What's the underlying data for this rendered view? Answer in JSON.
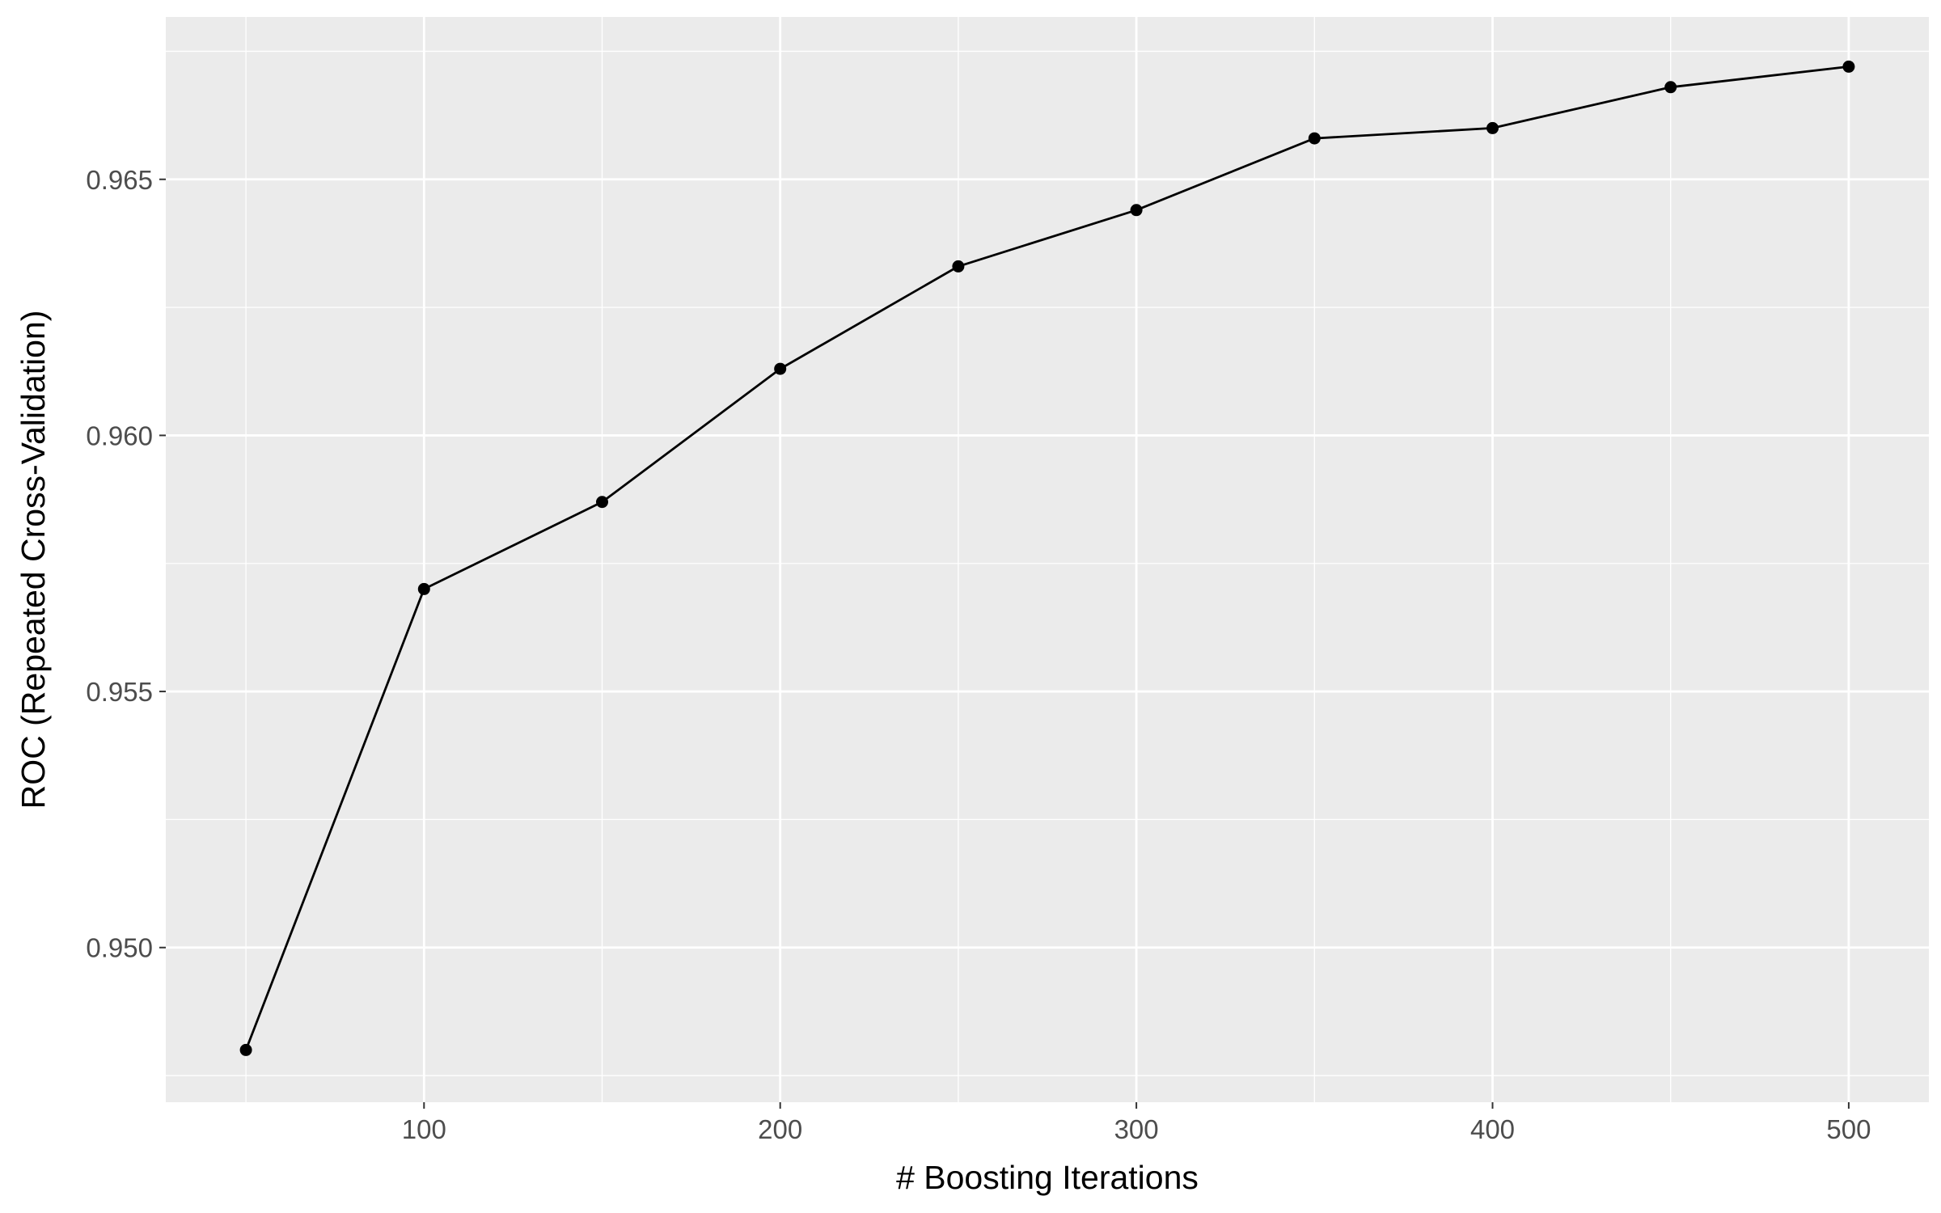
{
  "chart_data": {
    "type": "line",
    "title": "",
    "xlabel": "# Boosting Iterations",
    "ylabel": "ROC (Repeated Cross-Validation)",
    "xlim": [
      27.5,
      522.5
    ],
    "ylim": [
      0.94698,
      0.96817
    ],
    "x_ticks": [
      100,
      200,
      300,
      400,
      500
    ],
    "x_tick_labels": [
      "100",
      "200",
      "300",
      "400",
      "500"
    ],
    "y_ticks": [
      0.95,
      0.955,
      0.96,
      0.965
    ],
    "y_tick_labels": [
      "0.950",
      "0.955",
      "0.960",
      "0.965"
    ],
    "grid": true,
    "legend": "none",
    "colors": {
      "panel_background": "#ebebeb",
      "grid_major": "#ffffff",
      "line": "#000000",
      "points": "#000000"
    },
    "x": [
      50,
      100,
      150,
      200,
      250,
      300,
      350,
      400,
      450,
      500
    ],
    "y": [
      0.948,
      0.957,
      0.9587,
      0.9613,
      0.9633,
      0.9644,
      0.9658,
      0.966,
      0.9668,
      0.9672
    ]
  }
}
